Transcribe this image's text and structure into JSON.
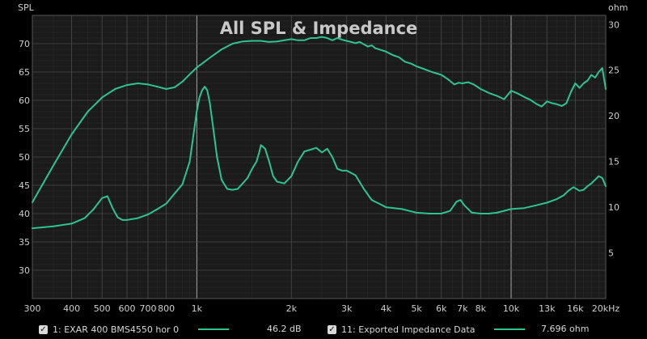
{
  "chart_data": {
    "type": "line",
    "title": "All SPL & Impedance",
    "x_scale": "log",
    "xlim": [
      300,
      20000
    ],
    "x_ticks": [
      {
        "value": 300,
        "label": "300"
      },
      {
        "value": 400,
        "label": "400"
      },
      {
        "value": 500,
        "label": "500"
      },
      {
        "value": 600,
        "label": "600"
      },
      {
        "value": 700,
        "label": "700"
      },
      {
        "value": 800,
        "label": "800"
      },
      {
        "value": 1000,
        "label": "1k"
      },
      {
        "value": 2000,
        "label": "2k"
      },
      {
        "value": 3000,
        "label": "3k"
      },
      {
        "value": 4000,
        "label": "4k"
      },
      {
        "value": 5000,
        "label": "5k"
      },
      {
        "value": 6000,
        "label": "6k"
      },
      {
        "value": 7000,
        "label": "7k"
      },
      {
        "value": 8000,
        "label": "8k"
      },
      {
        "value": 10000,
        "label": "10k"
      },
      {
        "value": 13000,
        "label": "13k"
      },
      {
        "value": 16000,
        "label": "16k"
      },
      {
        "value": 20000,
        "label": "20kHz"
      }
    ],
    "y_left": {
      "label": "SPL",
      "lim": [
        25,
        75
      ],
      "ticks": [
        30,
        35,
        40,
        45,
        50,
        55,
        60,
        65,
        70
      ]
    },
    "y_right": {
      "label": "ohm",
      "lim": [
        0,
        31
      ],
      "ticks": [
        5,
        10,
        15,
        20,
        25,
        30
      ]
    },
    "grid": true,
    "series": [
      {
        "name": "1: EXAR 400 BMS4550 hor 0",
        "axis": "left",
        "color": "#2cc592",
        "x": [
          300,
          350,
          400,
          450,
          500,
          550,
          600,
          650,
          700,
          750,
          800,
          850,
          900,
          950,
          1000,
          1100,
          1200,
          1300,
          1400,
          1500,
          1600,
          1700,
          1800,
          1900,
          2000,
          2100,
          2200,
          2300,
          2400,
          2500,
          2600,
          2700,
          2800,
          2900,
          3000,
          3100,
          3200,
          3300,
          3400,
          3500,
          3600,
          3700,
          3800,
          4000,
          4200,
          4400,
          4600,
          4800,
          5000,
          5300,
          5600,
          6000,
          6300,
          6600,
          6800,
          7000,
          7300,
          7600,
          8000,
          8500,
          9000,
          9500,
          10000,
          10500,
          11000,
          11500,
          12000,
          12500,
          13000,
          13500,
          14000,
          14500,
          15000,
          15500,
          16000,
          16500,
          17000,
          17500,
          18000,
          18500,
          19000,
          19500,
          20000
        ],
        "y": [
          42.0,
          48.5,
          54.0,
          58.0,
          60.5,
          62.0,
          62.7,
          63.0,
          62.8,
          62.4,
          62.0,
          62.3,
          63.3,
          64.6,
          65.8,
          67.5,
          69.0,
          70.0,
          70.4,
          70.5,
          70.5,
          70.3,
          70.4,
          70.6,
          70.8,
          70.6,
          70.6,
          71.0,
          71.0,
          71.2,
          71.0,
          70.6,
          71.0,
          70.7,
          70.5,
          70.3,
          70.1,
          70.3,
          69.9,
          69.5,
          69.7,
          69.2,
          69.0,
          68.6,
          68.0,
          67.6,
          66.8,
          66.5,
          66.0,
          65.5,
          65.0,
          64.5,
          63.7,
          62.8,
          63.1,
          63.0,
          63.2,
          62.8,
          62.0,
          61.3,
          60.8,
          60.2,
          61.7,
          61.2,
          60.6,
          60.1,
          59.4,
          58.9,
          59.8,
          59.5,
          59.3,
          59.0,
          59.5,
          61.5,
          63.0,
          62.2,
          63.0,
          63.5,
          64.5,
          64.0,
          65.0,
          65.7,
          62.0
        ]
      },
      {
        "name": "11: Exported Impedance Data",
        "axis": "right",
        "color": "#2cc592",
        "x": [
          300,
          350,
          400,
          440,
          470,
          500,
          520,
          540,
          560,
          580,
          600,
          650,
          700,
          750,
          800,
          850,
          900,
          950,
          1000,
          1020,
          1040,
          1060,
          1080,
          1100,
          1130,
          1160,
          1200,
          1250,
          1300,
          1350,
          1400,
          1450,
          1500,
          1550,
          1580,
          1600,
          1650,
          1700,
          1750,
          1800,
          1900,
          2000,
          2100,
          2200,
          2300,
          2400,
          2500,
          2600,
          2700,
          2800,
          2900,
          3000,
          3200,
          3400,
          3600,
          3800,
          4000,
          4500,
          5000,
          5500,
          6000,
          6400,
          6700,
          6900,
          7100,
          7500,
          8000,
          8500,
          9000,
          9500,
          10000,
          11000,
          12000,
          13000,
          14000,
          14700,
          15200,
          15800,
          16500,
          17000,
          17500,
          18000,
          18500,
          19000,
          19500,
          20000
        ],
        "y": [
          7.7,
          7.9,
          8.2,
          8.8,
          9.8,
          11.0,
          11.2,
          9.9,
          8.9,
          8.6,
          8.6,
          8.8,
          9.2,
          9.8,
          10.4,
          11.5,
          12.5,
          15.0,
          20.5,
          22.0,
          22.8,
          23.2,
          22.8,
          21.5,
          18.5,
          15.5,
          13.0,
          12.0,
          11.9,
          12.0,
          12.6,
          13.2,
          14.2,
          15.0,
          16.0,
          16.8,
          16.4,
          15.0,
          13.4,
          12.8,
          12.6,
          13.4,
          15.0,
          16.1,
          16.3,
          16.5,
          16.0,
          16.4,
          15.5,
          14.2,
          14.0,
          14.0,
          13.5,
          12.0,
          10.8,
          10.4,
          10.0,
          9.8,
          9.4,
          9.3,
          9.3,
          9.6,
          10.6,
          10.8,
          10.2,
          9.4,
          9.3,
          9.3,
          9.4,
          9.6,
          9.8,
          9.9,
          10.2,
          10.5,
          10.9,
          11.3,
          11.8,
          12.2,
          11.8,
          11.9,
          12.3,
          12.6,
          13.0,
          13.4,
          13.2,
          12.3
        ]
      }
    ]
  },
  "legend": [
    {
      "checked": true,
      "label": "1: EXAR 400 BMS4550 hor 0",
      "value": "46.2 dB",
      "color": "#2cc592"
    },
    {
      "checked": true,
      "label": "11: Exported Impedance Data",
      "value": "7.696 ohm",
      "color": "#2cc592"
    }
  ],
  "colors": {
    "background": "#000000",
    "plot_background": "#1b1b1b",
    "grid": "#3a3a3a",
    "grid_major": "#cccccc"
  }
}
